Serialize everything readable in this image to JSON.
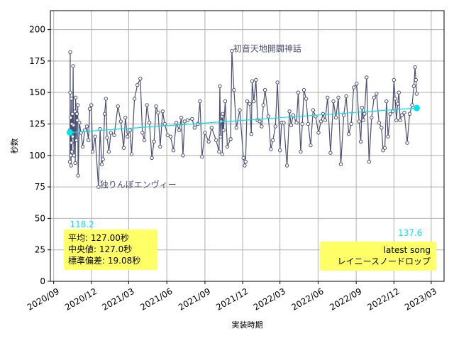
{
  "chart_data": {
    "type": "line",
    "xlabel": "実装時期",
    "ylabel": "秒数",
    "ylim": [
      0,
      215
    ],
    "xlim": [
      "2020-08-24",
      "2023-04-01"
    ],
    "y_ticks": [
      0,
      25,
      50,
      75,
      100,
      125,
      150,
      175,
      200
    ],
    "x_ticks": [
      "2020/09",
      "2020/12",
      "2021/03",
      "2021/06",
      "2021/09",
      "2021/12",
      "2022/03",
      "2022/06",
      "2022/09",
      "2022/12",
      "2023/03"
    ],
    "x_tick_dates": [
      "2020-09-01",
      "2020-12-01",
      "2021-03-01",
      "2021-06-01",
      "2021-09-01",
      "2021-12-01",
      "2022-03-01",
      "2022-06-01",
      "2022-09-01",
      "2022-12-01",
      "2023-03-01"
    ],
    "grid": true,
    "colors": {
      "series": "#4a4f74",
      "trend": "#00e5ee",
      "box": "#ffff66"
    },
    "series": [
      {
        "points": [
          [
            "2020-10-10",
            120
          ],
          [
            "2020-10-10",
            95
          ],
          [
            "2020-10-11",
            182
          ],
          [
            "2020-10-11",
            150
          ],
          [
            "2020-10-12",
            100
          ],
          [
            "2020-10-12",
            130
          ],
          [
            "2020-10-13",
            92
          ],
          [
            "2020-10-14",
            145
          ],
          [
            "2020-10-14",
            110
          ],
          [
            "2020-10-15",
            125
          ],
          [
            "2020-10-15",
            103
          ],
          [
            "2020-10-16",
            133
          ],
          [
            "2020-10-17",
            115
          ],
          [
            "2020-10-18",
            171
          ],
          [
            "2020-10-19",
            124
          ],
          [
            "2020-10-20",
            100
          ],
          [
            "2020-10-22",
            135
          ],
          [
            "2020-10-23",
            94
          ],
          [
            "2020-10-24",
            146
          ],
          [
            "2020-10-26",
            112
          ],
          [
            "2020-10-27",
            133
          ],
          [
            "2020-10-28",
            128
          ],
          [
            "2020-10-29",
            140
          ],
          [
            "2020-10-30",
            84
          ],
          [
            "2020-11-02",
            126
          ],
          [
            "2020-11-06",
            118
          ],
          [
            "2020-11-10",
            107
          ],
          [
            "2020-11-15",
            120
          ],
          [
            "2020-11-20",
            123
          ],
          [
            "2020-11-24",
            112
          ],
          [
            "2020-11-27",
            137
          ],
          [
            "2020-12-01",
            140
          ],
          [
            "2020-12-04",
            103
          ],
          [
            "2020-12-10",
            115
          ],
          [
            "2020-12-18",
            75
          ],
          [
            "2020-12-22",
            121
          ],
          [
            "2020-12-26",
            93
          ],
          [
            "2020-12-29",
            97
          ],
          [
            "2021-01-02",
            133
          ],
          [
            "2021-01-05",
            145
          ],
          [
            "2021-01-08",
            114
          ],
          [
            "2021-01-12",
            103
          ],
          [
            "2021-01-17",
            118
          ],
          [
            "2021-01-25",
            116
          ],
          [
            "2021-02-03",
            139
          ],
          [
            "2021-02-10",
            127
          ],
          [
            "2021-02-17",
            106
          ],
          [
            "2021-02-21",
            130
          ],
          [
            "2021-02-26",
            115
          ],
          [
            "2021-03-04",
            120
          ],
          [
            "2021-03-08",
            101
          ],
          [
            "2021-03-15",
            145
          ],
          [
            "2021-03-22",
            156
          ],
          [
            "2021-03-29",
            161
          ],
          [
            "2021-04-03",
            118
          ],
          [
            "2021-04-08",
            112
          ],
          [
            "2021-04-14",
            140
          ],
          [
            "2021-04-20",
            126
          ],
          [
            "2021-04-26",
            98
          ],
          [
            "2021-05-01",
            111
          ],
          [
            "2021-05-06",
            139
          ],
          [
            "2021-05-11",
            134
          ],
          [
            "2021-05-16",
            107
          ],
          [
            "2021-05-22",
            135
          ],
          [
            "2021-05-27",
            125
          ],
          [
            "2021-06-03",
            116
          ],
          [
            "2021-06-10",
            115
          ],
          [
            "2021-06-17",
            104
          ],
          [
            "2021-06-24",
            126
          ],
          [
            "2021-07-01",
            120
          ],
          [
            "2021-07-06",
            130
          ],
          [
            "2021-07-10",
            100
          ],
          [
            "2021-07-14",
            127
          ],
          [
            "2021-07-21",
            128
          ],
          [
            "2021-08-01",
            129
          ],
          [
            "2021-08-07",
            122
          ],
          [
            "2021-08-15",
            125
          ],
          [
            "2021-08-20",
            143
          ],
          [
            "2021-08-25",
            99
          ],
          [
            "2021-09-01",
            118
          ],
          [
            "2021-09-10",
            111
          ],
          [
            "2021-09-17",
            122
          ],
          [
            "2021-09-28",
            112
          ],
          [
            "2021-10-05",
            103
          ],
          [
            "2021-10-07",
            155
          ],
          [
            "2021-10-09",
            115
          ],
          [
            "2021-10-10",
            127
          ],
          [
            "2021-10-12",
            131
          ],
          [
            "2021-10-13",
            101
          ],
          [
            "2021-10-14",
            133
          ],
          [
            "2021-10-16",
            120
          ],
          [
            "2021-10-20",
            143
          ],
          [
            "2021-10-25",
            107
          ],
          [
            "2021-11-02",
            113
          ],
          [
            "2021-11-05",
            183
          ],
          [
            "2021-11-10",
            152
          ],
          [
            "2021-11-16",
            122
          ],
          [
            "2021-11-24",
            136
          ],
          [
            "2021-12-03",
            98
          ],
          [
            "2021-12-06",
            92
          ],
          [
            "2021-12-08",
            95
          ],
          [
            "2021-12-12",
            143
          ],
          [
            "2021-12-18",
            141
          ],
          [
            "2021-12-22",
            117
          ],
          [
            "2021-12-24",
            159
          ],
          [
            "2021-12-28",
            143
          ],
          [
            "2022-01-02",
            160
          ],
          [
            "2022-01-06",
            128
          ],
          [
            "2022-01-11",
            127
          ],
          [
            "2022-01-16",
            123
          ],
          [
            "2022-01-20",
            140
          ],
          [
            "2022-01-24",
            152
          ],
          [
            "2022-02-01",
            131
          ],
          [
            "2022-02-07",
            105
          ],
          [
            "2022-02-12",
            112
          ],
          [
            "2022-02-18",
            123
          ],
          [
            "2022-02-23",
            158
          ],
          [
            "2022-03-01",
            104
          ],
          [
            "2022-03-05",
            126
          ],
          [
            "2022-03-10",
            126
          ],
          [
            "2022-03-18",
            92
          ],
          [
            "2022-03-24",
            135
          ],
          [
            "2022-03-28",
            124
          ],
          [
            "2022-04-02",
            132
          ],
          [
            "2022-04-10",
            126
          ],
          [
            "2022-04-14",
            150
          ],
          [
            "2022-04-20",
            103
          ],
          [
            "2022-04-24",
            125
          ],
          [
            "2022-04-28",
            152
          ],
          [
            "2022-05-03",
            145
          ],
          [
            "2022-05-08",
            125
          ],
          [
            "2022-05-14",
            108
          ],
          [
            "2022-05-20",
            136
          ],
          [
            "2022-05-26",
            131
          ],
          [
            "2022-06-02",
            118
          ],
          [
            "2022-06-08",
            127
          ],
          [
            "2022-06-13",
            133
          ],
          [
            "2022-06-18",
            128
          ],
          [
            "2022-06-24",
            146
          ],
          [
            "2022-07-01",
            102
          ],
          [
            "2022-07-08",
            143
          ],
          [
            "2022-07-14",
            130
          ],
          [
            "2022-07-20",
            146
          ],
          [
            "2022-07-26",
            93
          ],
          [
            "2022-08-02",
            132
          ],
          [
            "2022-08-08",
            147
          ],
          [
            "2022-08-14",
            117
          ],
          [
            "2022-08-20",
            125
          ],
          [
            "2022-08-26",
            154
          ],
          [
            "2022-09-02",
            157
          ],
          [
            "2022-09-08",
            127
          ],
          [
            "2022-09-12",
            111
          ],
          [
            "2022-09-15",
            138
          ],
          [
            "2022-09-18",
            128
          ],
          [
            "2022-09-21",
            133
          ],
          [
            "2022-09-26",
            162
          ],
          [
            "2022-10-02",
            95
          ],
          [
            "2022-10-08",
            130
          ],
          [
            "2022-10-14",
            146
          ],
          [
            "2022-10-20",
            149
          ],
          [
            "2022-10-26",
            126
          ],
          [
            "2022-11-01",
            122
          ],
          [
            "2022-11-05",
            104
          ],
          [
            "2022-11-09",
            106
          ],
          [
            "2022-11-13",
            143
          ],
          [
            "2022-11-17",
            115
          ],
          [
            "2022-11-22",
            133
          ],
          [
            "2022-11-28",
            135
          ],
          [
            "2022-12-01",
            160
          ],
          [
            "2022-12-04",
            145
          ],
          [
            "2022-12-07",
            128
          ],
          [
            "2022-12-10",
            141
          ],
          [
            "2022-12-13",
            150
          ],
          [
            "2022-12-16",
            128
          ],
          [
            "2022-12-20",
            132
          ],
          [
            "2022-12-26",
            134
          ],
          [
            "2023-01-02",
            110
          ],
          [
            "2023-01-08",
            133
          ],
          [
            "2023-01-14",
            140
          ],
          [
            "2023-01-18",
            155
          ],
          [
            "2023-01-21",
            170
          ],
          [
            "2023-01-23",
            160
          ],
          [
            "2023-01-25",
            149
          ]
        ]
      }
    ],
    "trend": {
      "start": [
        "2020-10-10",
        118.2
      ],
      "end": [
        "2023-01-25",
        137.6
      ]
    },
    "annotations": [
      {
        "text": "初音天地開闢神話",
        "x": "2021-11-05",
        "y": 183
      },
      {
        "text": "独りんぼエンヴィー",
        "x": "2020-12-18",
        "y": 75
      }
    ],
    "end_labels": {
      "start": "118.2",
      "end": "137.6"
    },
    "stats_box": {
      "lines": [
        "平均: 127.00秒",
        "中央値: 127.0秒",
        "標準偏差: 19.08秒"
      ],
      "placement": "lower-left"
    },
    "latest_box": {
      "lines": [
        "latest song",
        "レイニースノードロップ"
      ],
      "placement": "lower-right"
    }
  }
}
